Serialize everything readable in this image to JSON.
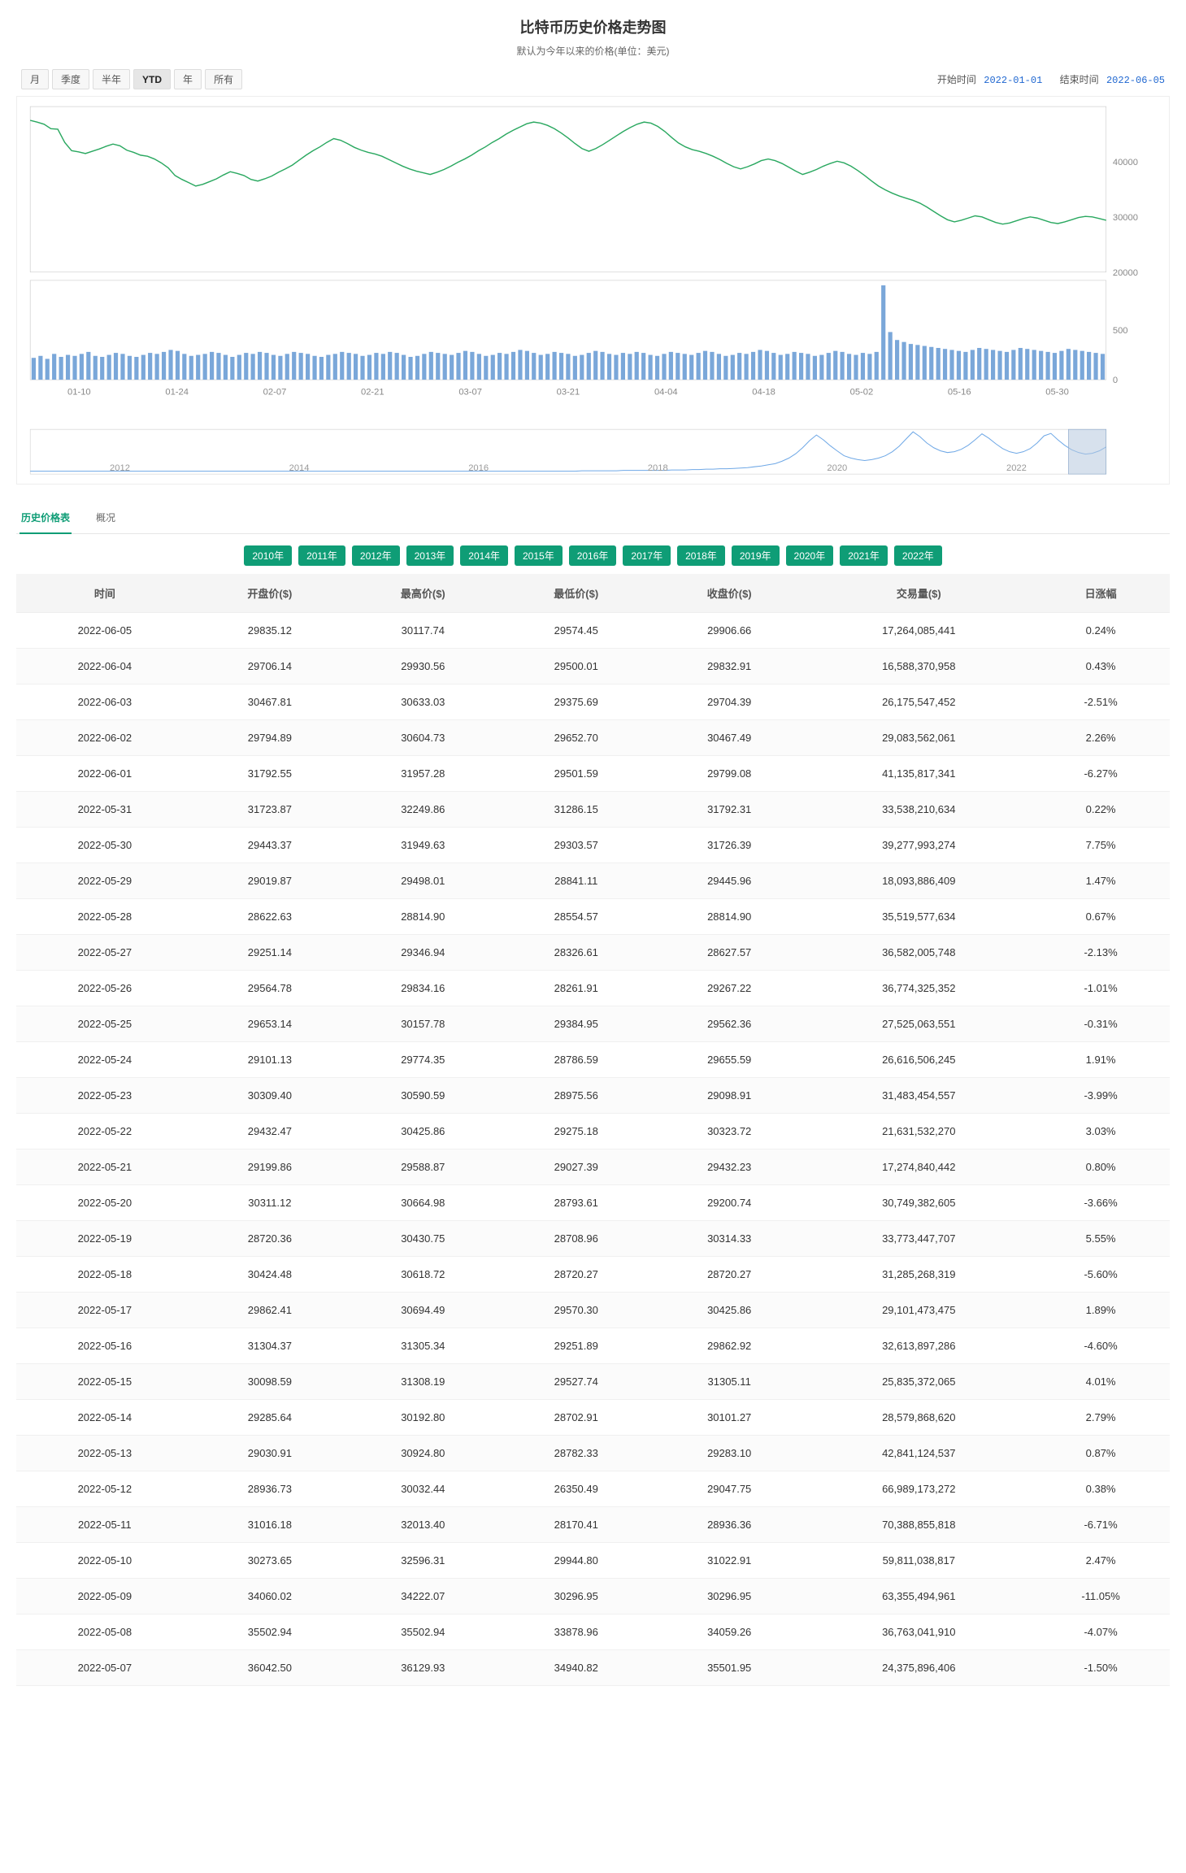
{
  "header": {
    "title": "比特币历史价格走势图",
    "subtitle": "默认为今年以来的价格(单位：美元)"
  },
  "toolbar": {
    "ranges": [
      {
        "label": "月",
        "active": false
      },
      {
        "label": "季度",
        "active": false
      },
      {
        "label": "半年",
        "active": false
      },
      {
        "label": "YTD",
        "active": true
      },
      {
        "label": "年",
        "active": false
      },
      {
        "label": "所有",
        "active": false
      }
    ],
    "start_label": "开始时间",
    "start_value": "2022-01-01",
    "end_label": "结束时间",
    "end_value": "2022-06-05"
  },
  "price_chart": {
    "type": "line",
    "line_color": "#2aa860",
    "line_width": 1.4,
    "axis_color": "#c9c9c9",
    "label_color": "#888888",
    "background": "#ffffff",
    "y_ticks": [
      20000,
      30000,
      40000
    ],
    "y_min": 20000,
    "y_max": 50000,
    "points": [
      47500,
      47200,
      46800,
      46000,
      45900,
      43500,
      42000,
      41800,
      41500,
      41900,
      42300,
      42800,
      43200,
      42900,
      42100,
      41700,
      41200,
      41000,
      40500,
      39800,
      38900,
      37500,
      36800,
      36200,
      35600,
      35900,
      36400,
      36900,
      37600,
      38200,
      37900,
      37500,
      36800,
      36500,
      36900,
      37400,
      38100,
      38700,
      39400,
      40300,
      41200,
      42000,
      42700,
      43500,
      44200,
      43900,
      43300,
      42600,
      42100,
      41700,
      41400,
      41000,
      40400,
      39800,
      39200,
      38700,
      38300,
      38000,
      37700,
      38100,
      38600,
      39200,
      39900,
      40500,
      41200,
      42000,
      42700,
      43500,
      44200,
      45000,
      45700,
      46300,
      46900,
      47200,
      47000,
      46600,
      46000,
      45200,
      44300,
      43300,
      42400,
      41900,
      42400,
      43100,
      43900,
      44700,
      45500,
      46200,
      46800,
      47200,
      47000,
      46400,
      45500,
      44400,
      43400,
      42700,
      42200,
      41900,
      41500,
      41000,
      40400,
      39700,
      39100,
      38700,
      39100,
      39600,
      40200,
      40500,
      40200,
      39700,
      39000,
      38300,
      37700,
      38100,
      38600,
      39200,
      39700,
      40100,
      39800,
      39200,
      38400,
      37500,
      36500,
      35600,
      34900,
      34300,
      33800,
      33400,
      33000,
      32500,
      31800,
      31000,
      30200,
      29500,
      29100,
      29400,
      29800,
      30200,
      30000,
      29500,
      29000,
      28700,
      28900,
      29300,
      29700,
      30000,
      29800,
      29400,
      29000,
      28800,
      29100,
      29500,
      29900,
      30100,
      30000,
      29700,
      29400
    ]
  },
  "volume_chart": {
    "type": "bar",
    "bar_color": "#7aa7d9",
    "axis_color": "#c9c9c9",
    "label_color": "#888888",
    "y_ticks": [
      0,
      500
    ],
    "y_max": 1000,
    "values": [
      220,
      240,
      210,
      260,
      230,
      250,
      240,
      260,
      280,
      240,
      230,
      250,
      270,
      260,
      240,
      230,
      250,
      270,
      260,
      280,
      300,
      290,
      260,
      240,
      250,
      260,
      280,
      270,
      250,
      230,
      250,
      270,
      260,
      280,
      270,
      250,
      240,
      260,
      280,
      270,
      260,
      240,
      230,
      250,
      260,
      280,
      270,
      260,
      240,
      250,
      270,
      260,
      280,
      270,
      250,
      230,
      240,
      260,
      280,
      270,
      260,
      250,
      270,
      290,
      280,
      260,
      240,
      250,
      270,
      260,
      280,
      300,
      290,
      270,
      250,
      260,
      280,
      270,
      260,
      240,
      250,
      270,
      290,
      280,
      260,
      250,
      270,
      260,
      280,
      270,
      250,
      240,
      260,
      280,
      270,
      260,
      250,
      270,
      290,
      280,
      260,
      240,
      250,
      270,
      260,
      280,
      300,
      290,
      270,
      250,
      260,
      280,
      270,
      260,
      240,
      250,
      270,
      290,
      280,
      260,
      250,
      270,
      260,
      280,
      950,
      480,
      400,
      380,
      360,
      350,
      340,
      330,
      320,
      310,
      300,
      290,
      280,
      300,
      320,
      310,
      300,
      290,
      280,
      300,
      320,
      310,
      300,
      290,
      280,
      270,
      290,
      310,
      300,
      290,
      280,
      270,
      260
    ],
    "x_labels": [
      "01-10",
      "01-24",
      "02-07",
      "02-21",
      "03-07",
      "03-21",
      "04-04",
      "04-18",
      "05-02",
      "05-16",
      "05-30"
    ]
  },
  "navigator": {
    "line_color": "#6fa8e6",
    "axis_color": "#d0d0d0",
    "label_color": "#999999",
    "selection_fill": "#b7c8de",
    "selection_opacity": 0.55,
    "year_labels": [
      "2012",
      "2014",
      "2016",
      "2018",
      "2020",
      "2022"
    ],
    "points": [
      1,
      1,
      1,
      1,
      1,
      1,
      1,
      1,
      1,
      1,
      1,
      1,
      1,
      1,
      1,
      1,
      1,
      1,
      1,
      1,
      1,
      1,
      1,
      1,
      1,
      1,
      1,
      1,
      1,
      1,
      1,
      1,
      1,
      1,
      1,
      1,
      1,
      1,
      1,
      1,
      1,
      1,
      1,
      1,
      1,
      1,
      1,
      1,
      1,
      1,
      1,
      1,
      1,
      1,
      1,
      1,
      1,
      1,
      1,
      1,
      1,
      1,
      1,
      1,
      1,
      1,
      1,
      1,
      1,
      1,
      1,
      1,
      1,
      1,
      1,
      1,
      1,
      1,
      1,
      1,
      2,
      2,
      2,
      2,
      2,
      2,
      3,
      3,
      3,
      3,
      3,
      3,
      3,
      4,
      4,
      4,
      5,
      5,
      6,
      6,
      7,
      7,
      8,
      9,
      10,
      12,
      14,
      17,
      20,
      26,
      34,
      45,
      60,
      78,
      92,
      80,
      65,
      52,
      40,
      34,
      30,
      28,
      30,
      34,
      40,
      50,
      64,
      82,
      100,
      88,
      72,
      60,
      52,
      48,
      50,
      56,
      66,
      80,
      95,
      84,
      70,
      58,
      50,
      46,
      50,
      58,
      72,
      90,
      96,
      80,
      66,
      55,
      48,
      44,
      46,
      52,
      62
    ]
  },
  "tabs": {
    "items": [
      {
        "label": "历史价格表",
        "active": true
      },
      {
        "label": "概况",
        "active": false
      }
    ]
  },
  "year_pills": [
    "2010年",
    "2011年",
    "2012年",
    "2013年",
    "2014年",
    "2015年",
    "2016年",
    "2017年",
    "2018年",
    "2019年",
    "2020年",
    "2021年",
    "2022年"
  ],
  "table": {
    "columns": [
      "时间",
      "开盘价($)",
      "最高价($)",
      "最低价($)",
      "收盘价($)",
      "交易量($)",
      "日涨幅"
    ],
    "rows": [
      [
        "2022-06-05",
        "29835.12",
        "30117.74",
        "29574.45",
        "29906.66",
        "17,264,085,441",
        "0.24%"
      ],
      [
        "2022-06-04",
        "29706.14",
        "29930.56",
        "29500.01",
        "29832.91",
        "16,588,370,958",
        "0.43%"
      ],
      [
        "2022-06-03",
        "30467.81",
        "30633.03",
        "29375.69",
        "29704.39",
        "26,175,547,452",
        "-2.51%"
      ],
      [
        "2022-06-02",
        "29794.89",
        "30604.73",
        "29652.70",
        "30467.49",
        "29,083,562,061",
        "2.26%"
      ],
      [
        "2022-06-01",
        "31792.55",
        "31957.28",
        "29501.59",
        "29799.08",
        "41,135,817,341",
        "-6.27%"
      ],
      [
        "2022-05-31",
        "31723.87",
        "32249.86",
        "31286.15",
        "31792.31",
        "33,538,210,634",
        "0.22%"
      ],
      [
        "2022-05-30",
        "29443.37",
        "31949.63",
        "29303.57",
        "31726.39",
        "39,277,993,274",
        "7.75%"
      ],
      [
        "2022-05-29",
        "29019.87",
        "29498.01",
        "28841.11",
        "29445.96",
        "18,093,886,409",
        "1.47%"
      ],
      [
        "2022-05-28",
        "28622.63",
        "28814.90",
        "28554.57",
        "28814.90",
        "35,519,577,634",
        "0.67%"
      ],
      [
        "2022-05-27",
        "29251.14",
        "29346.94",
        "28326.61",
        "28627.57",
        "36,582,005,748",
        "-2.13%"
      ],
      [
        "2022-05-26",
        "29564.78",
        "29834.16",
        "28261.91",
        "29267.22",
        "36,774,325,352",
        "-1.01%"
      ],
      [
        "2022-05-25",
        "29653.14",
        "30157.78",
        "29384.95",
        "29562.36",
        "27,525,063,551",
        "-0.31%"
      ],
      [
        "2022-05-24",
        "29101.13",
        "29774.35",
        "28786.59",
        "29655.59",
        "26,616,506,245",
        "1.91%"
      ],
      [
        "2022-05-23",
        "30309.40",
        "30590.59",
        "28975.56",
        "29098.91",
        "31,483,454,557",
        "-3.99%"
      ],
      [
        "2022-05-22",
        "29432.47",
        "30425.86",
        "29275.18",
        "30323.72",
        "21,631,532,270",
        "3.03%"
      ],
      [
        "2022-05-21",
        "29199.86",
        "29588.87",
        "29027.39",
        "29432.23",
        "17,274,840,442",
        "0.80%"
      ],
      [
        "2022-05-20",
        "30311.12",
        "30664.98",
        "28793.61",
        "29200.74",
        "30,749,382,605",
        "-3.66%"
      ],
      [
        "2022-05-19",
        "28720.36",
        "30430.75",
        "28708.96",
        "30314.33",
        "33,773,447,707",
        "5.55%"
      ],
      [
        "2022-05-18",
        "30424.48",
        "30618.72",
        "28720.27",
        "28720.27",
        "31,285,268,319",
        "-5.60%"
      ],
      [
        "2022-05-17",
        "29862.41",
        "30694.49",
        "29570.30",
        "30425.86",
        "29,101,473,475",
        "1.89%"
      ],
      [
        "2022-05-16",
        "31304.37",
        "31305.34",
        "29251.89",
        "29862.92",
        "32,613,897,286",
        "-4.60%"
      ],
      [
        "2022-05-15",
        "30098.59",
        "31308.19",
        "29527.74",
        "31305.11",
        "25,835,372,065",
        "4.01%"
      ],
      [
        "2022-05-14",
        "29285.64",
        "30192.80",
        "28702.91",
        "30101.27",
        "28,579,868,620",
        "2.79%"
      ],
      [
        "2022-05-13",
        "29030.91",
        "30924.80",
        "28782.33",
        "29283.10",
        "42,841,124,537",
        "0.87%"
      ],
      [
        "2022-05-12",
        "28936.73",
        "30032.44",
        "26350.49",
        "29047.75",
        "66,989,173,272",
        "0.38%"
      ],
      [
        "2022-05-11",
        "31016.18",
        "32013.40",
        "28170.41",
        "28936.36",
        "70,388,855,818",
        "-6.71%"
      ],
      [
        "2022-05-10",
        "30273.65",
        "32596.31",
        "29944.80",
        "31022.91",
        "59,811,038,817",
        "2.47%"
      ],
      [
        "2022-05-09",
        "34060.02",
        "34222.07",
        "30296.95",
        "30296.95",
        "63,355,494,961",
        "-11.05%"
      ],
      [
        "2022-05-08",
        "35502.94",
        "35502.94",
        "33878.96",
        "34059.26",
        "36,763,041,910",
        "-4.07%"
      ],
      [
        "2022-05-07",
        "36042.50",
        "36129.93",
        "34940.82",
        "35501.95",
        "24,375,896,406",
        "-1.50%"
      ]
    ]
  }
}
